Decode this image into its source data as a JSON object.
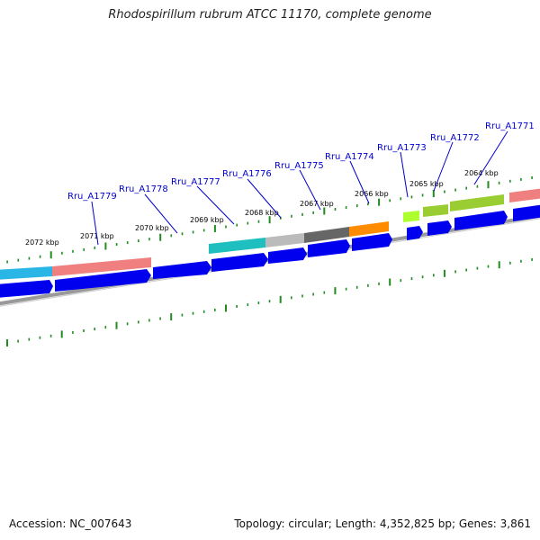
{
  "title": "Rhodospirillum rubrum ATCC 11170, complete genome",
  "footer": {
    "accession": "Accession: NC_007643",
    "stats": "Topology: circular; Length: 4,352,825 bp; Genes: 3,861"
  },
  "scale_labels": [
    "2072 kbp",
    "2071 kbp",
    "2070 kbp",
    "2069 kbp",
    "2068 kbp",
    "2067 kbp",
    "2066 kbp",
    "2065 kbp",
    "2064 kbp"
  ],
  "gene_labels": [
    "Rru_A1779",
    "Rru_A1778",
    "Rru_A1777",
    "Rru_A1776",
    "Rru_A1775",
    "Rru_A1774",
    "Rru_A1773",
    "Rru_A1772",
    "Rru_A1771"
  ],
  "colors": {
    "cds": "#0000ee",
    "tick": "#228b22",
    "backbone": "#888888",
    "leader": "#0000cc",
    "gene_bands": [
      "#29b6e6",
      "#f08080",
      "#1fbfbf",
      "#bbbbbb",
      "#666666",
      "#ff8c00",
      "#adff2f",
      "#9acd32",
      "#f08080"
    ]
  }
}
